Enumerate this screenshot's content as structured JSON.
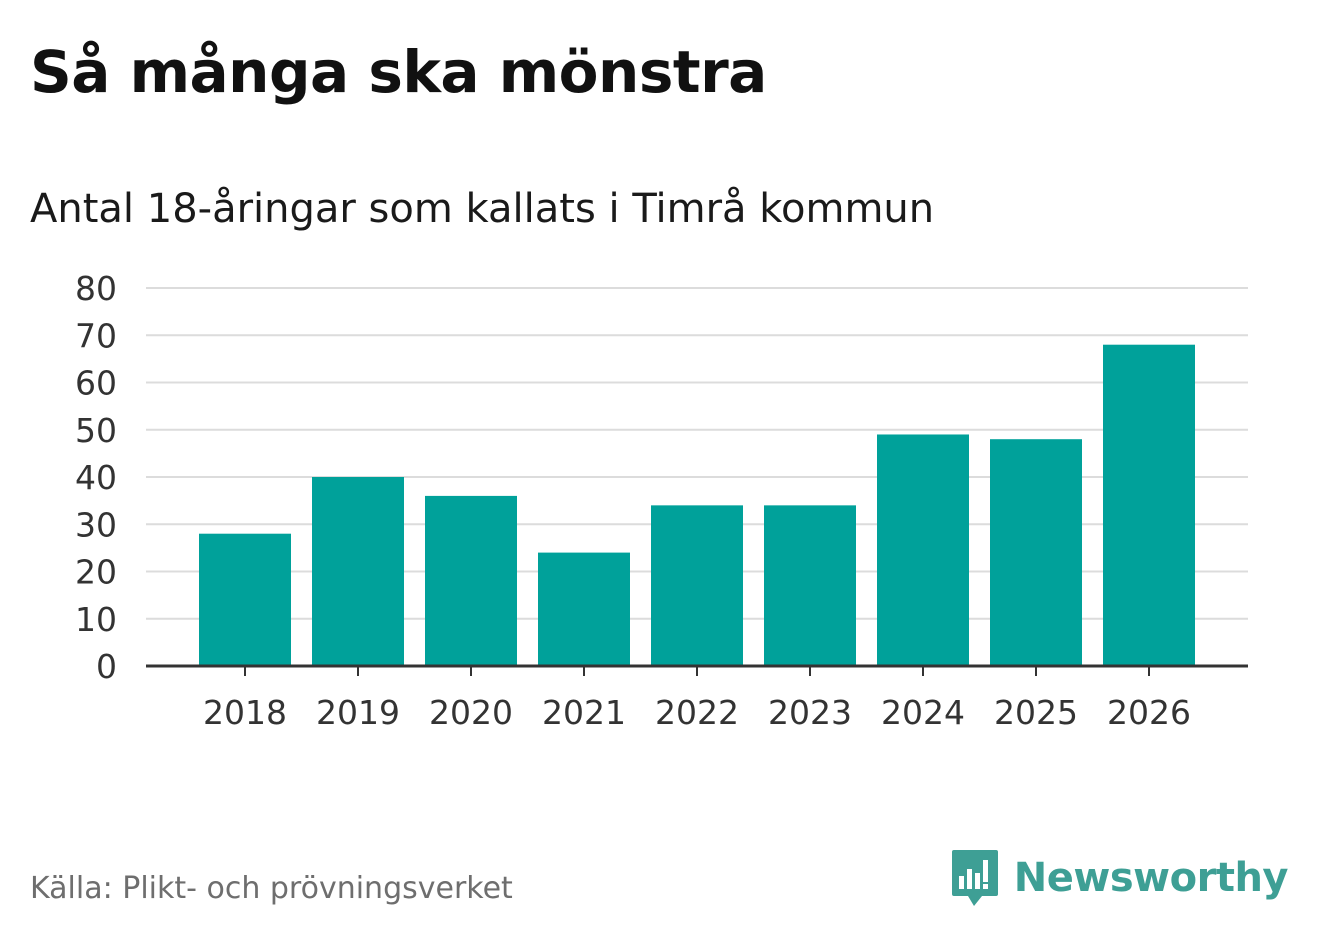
{
  "header": {
    "title": "Så många ska mönstra",
    "subtitle": "Antal 18-åringar som kallats i Timrå kommun"
  },
  "chart_data": {
    "type": "bar",
    "title": "Så många ska mönstra",
    "subtitle": "Antal 18-åringar som kallats i Timrå kommun",
    "categories": [
      "2018",
      "2019",
      "2020",
      "2021",
      "2022",
      "2023",
      "2024",
      "2025",
      "2026"
    ],
    "values": [
      28,
      40,
      36,
      24,
      34,
      34,
      49,
      48,
      68
    ],
    "yticks": [
      0,
      10,
      20,
      30,
      40,
      50,
      60,
      70,
      80
    ],
    "ylim": [
      0,
      80
    ],
    "xlabel": "",
    "ylabel": "",
    "grid": true,
    "bar_color": "#00a19a"
  },
  "footer": {
    "source": "Källa: Plikt- och prövningsverket",
    "brand": "Newsworthy",
    "brand_icon": "bar-chart-speech-bubble-icon",
    "brand_color": "#3e9f95"
  }
}
